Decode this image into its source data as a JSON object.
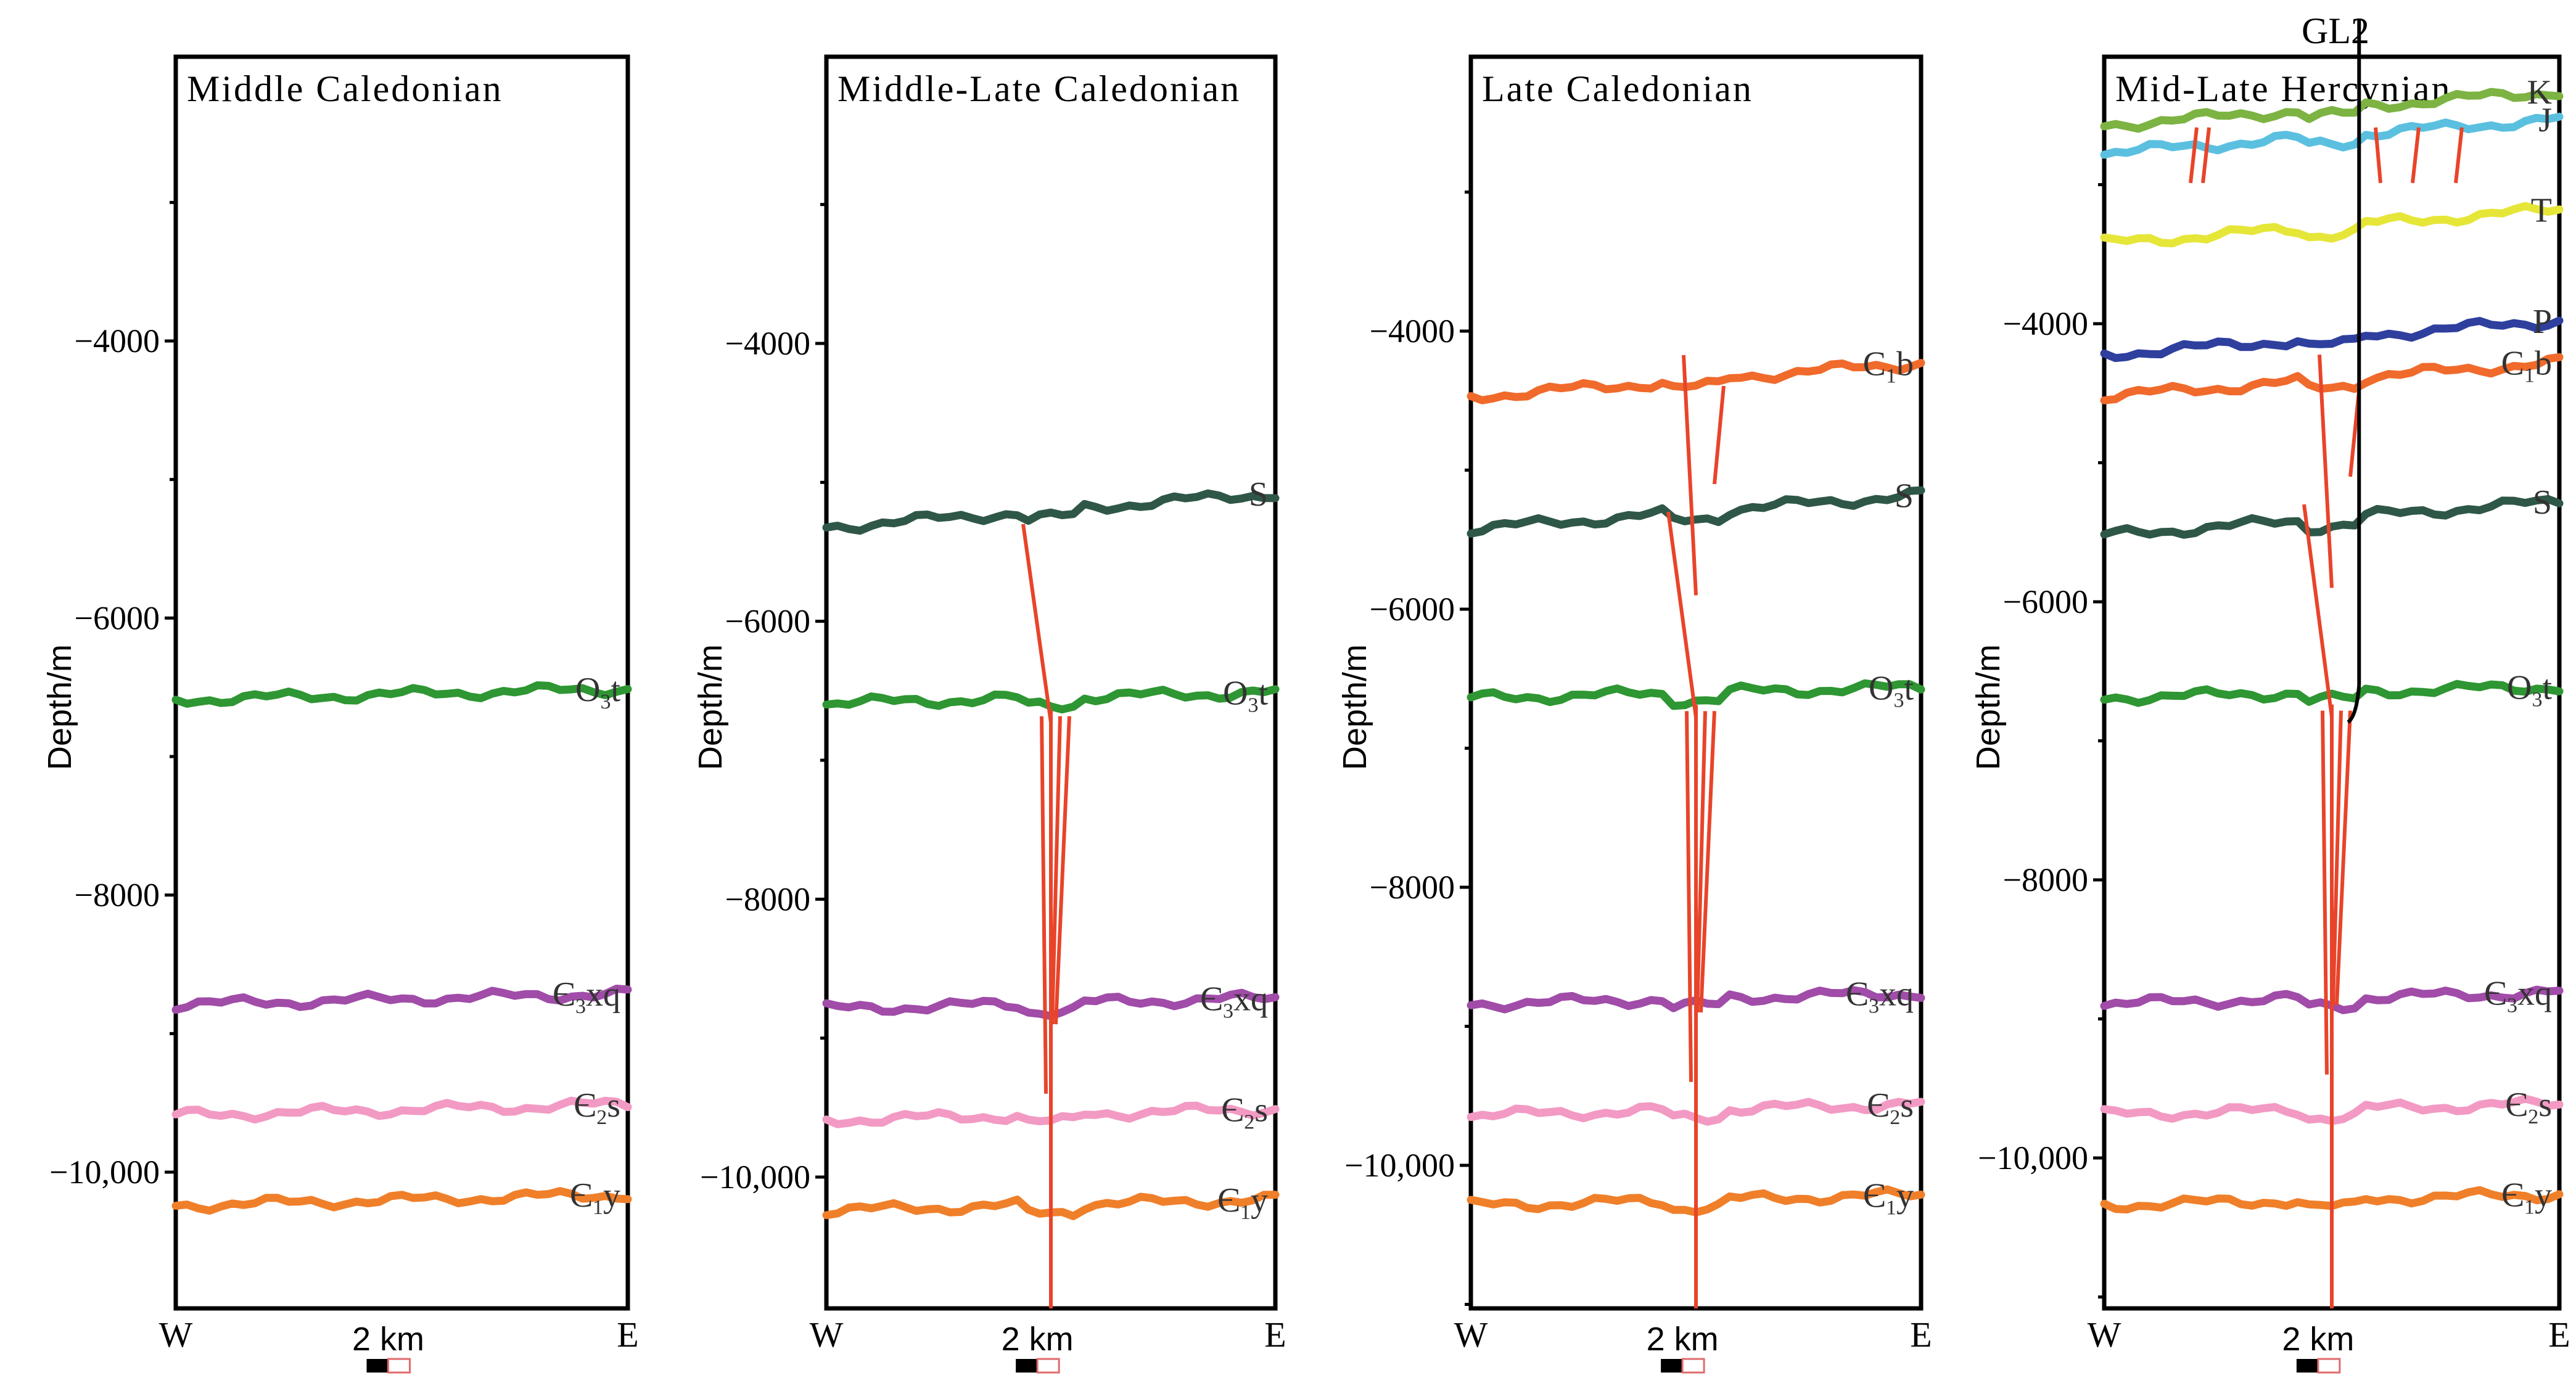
{
  "ylabel": "Depth/m",
  "scale_label": "2 km",
  "left_label": "W",
  "right_label": "E",
  "well_name": "GL2",
  "colors": {
    "K": "#7cb342",
    "J": "#5bc0e0",
    "T": "#e6e639",
    "P": "#2e3f9e",
    "C1b": "#f06a2c",
    "S": "#2f5748",
    "O3t": "#2e9632",
    "C3xq": "#a04ca8",
    "C2s": "#f29ac3",
    "C1y": "#f07f2a",
    "fault": "#e8442a"
  },
  "panels": [
    {
      "title": "Middle Caledonian",
      "ticks": [
        {
          "value": -4000,
          "label": "-4000"
        },
        {
          "value": -6000,
          "label": "-6000"
        },
        {
          "value": -8000,
          "label": "-8000"
        },
        {
          "value": -10000,
          "label": "-10,000"
        }
      ],
      "horizons": [
        {
          "key": "O3t",
          "label": "O3t",
          "depth": -6550
        },
        {
          "key": "C3xq",
          "label": "Є3xq",
          "depth": -8750
        },
        {
          "key": "C2s",
          "label": "Є2s",
          "depth": -9550
        },
        {
          "key": "C1y",
          "label": "Є1y",
          "depth": -10200
        }
      ],
      "has_faults": false,
      "has_well": false
    },
    {
      "title": "Middle-Late Caledonian",
      "ticks": [
        {
          "value": -4000,
          "label": "-4000"
        },
        {
          "value": -6000,
          "label": "-6000"
        },
        {
          "value": -8000,
          "label": "-8000"
        },
        {
          "value": -10000,
          "label": "-10,000"
        }
      ],
      "horizons": [
        {
          "key": "S",
          "label": "S",
          "depth": -5200
        },
        {
          "key": "O3t",
          "label": "O3t",
          "depth": -6550
        },
        {
          "key": "C3xq",
          "label": "Є3xq",
          "depth": -8750
        },
        {
          "key": "C2s",
          "label": "Є2s",
          "depth": -9550
        },
        {
          "key": "C1y",
          "label": "Є1y",
          "depth": -10200
        }
      ],
      "has_faults": true,
      "has_well": false
    },
    {
      "title": "Late Caledonian",
      "ticks": [
        {
          "value": -4000,
          "label": "-4000"
        },
        {
          "value": -6000,
          "label": "-6000"
        },
        {
          "value": -8000,
          "label": "-8000"
        },
        {
          "value": -10000,
          "label": "-10,000"
        }
      ],
      "horizons": [
        {
          "key": "C1b",
          "label": "C1b",
          "depth": -4350
        },
        {
          "key": "S",
          "label": "S",
          "depth": -5300
        },
        {
          "key": "O3t",
          "label": "O3t",
          "depth": -6600
        },
        {
          "key": "C3xq",
          "label": "Є3xq",
          "depth": -8800
        },
        {
          "key": "C2s",
          "label": "Є2s",
          "depth": -9600
        },
        {
          "key": "C1y",
          "label": "Є1y",
          "depth": -10250
        }
      ],
      "has_faults": true,
      "has_well": false
    },
    {
      "title": "Mid-Late Hercynian",
      "ticks": [
        {
          "value": -4000,
          "label": "-4000"
        },
        {
          "value": -6000,
          "label": "-6000"
        },
        {
          "value": -8000,
          "label": "-8000"
        },
        {
          "value": -10000,
          "label": "-10,000"
        }
      ],
      "horizons": [
        {
          "key": "K",
          "label": "K",
          "depth": -2450
        },
        {
          "key": "J",
          "label": "J",
          "depth": -2650
        },
        {
          "key": "T",
          "label": "T",
          "depth": -3300
        },
        {
          "key": "P",
          "label": "P",
          "depth": -4100
        },
        {
          "key": "C1b",
          "label": "C1b",
          "depth": -4400
        },
        {
          "key": "S",
          "label": "S",
          "depth": -5400
        },
        {
          "key": "O3t",
          "label": "O3t",
          "depth": -6650
        },
        {
          "key": "C3xq",
          "label": "Є3xq",
          "depth": -8850
        },
        {
          "key": "C2s",
          "label": "Є2s",
          "depth": -9650
        },
        {
          "key": "C1y",
          "label": "Є1y",
          "depth": -10300
        }
      ],
      "has_faults": true,
      "has_well": true
    }
  ]
}
